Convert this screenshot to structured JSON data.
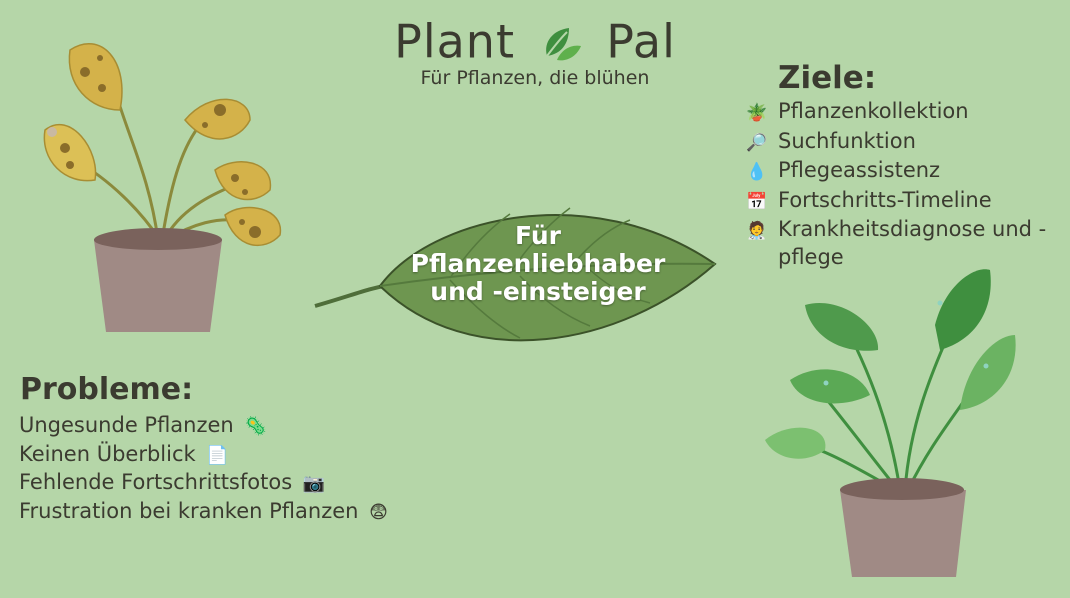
{
  "brand": {
    "name_left": "Plant",
    "name_right": "Pal",
    "tagline": "Für Pflanzen, die blühen"
  },
  "center": {
    "line1": "Für",
    "line2": "Pflanzenliebhaber",
    "line3": "und -einsteiger"
  },
  "goals": {
    "title": "Ziele:",
    "items": [
      {
        "icon": "🪴",
        "icon_name": "potted-plant-icon",
        "label": "Pflanzenkollektion"
      },
      {
        "icon": "🔎",
        "icon_name": "magnifier-icon",
        "label": "Suchfunktion"
      },
      {
        "icon": "💧",
        "icon_name": "droplet-icon",
        "label": "Pflegeassistenz"
      },
      {
        "icon": "📅",
        "icon_name": "calendar-icon",
        "label": "Fortschritts-Timeline"
      },
      {
        "icon": "🧑‍⚕️",
        "icon_name": "doctor-icon",
        "label": "Krankheitsdiagnose und -pflege"
      }
    ]
  },
  "problems": {
    "title": "Probleme:",
    "items": [
      {
        "label": "Ungesunde Pflanzen",
        "icon": "🦠",
        "icon_name": "microbe-icon"
      },
      {
        "label": "Keinen Überblick",
        "icon": "📄",
        "icon_name": "document-icon"
      },
      {
        "label": "Fehlende Fortschrittsfotos",
        "icon": "📷",
        "icon_name": "camera-icon"
      },
      {
        "label": "Frustration bei kranken Pflanzen",
        "icon": "😨",
        "icon_name": "fearful-face-icon"
      }
    ]
  },
  "colors": {
    "background": "#b5d6a8",
    "text": "#3b3b30",
    "leaf": "#6e9650",
    "pot": "#a08a85",
    "sick_leaf": "#d4b24a",
    "healthy_leaf": "#4f9a4c"
  }
}
